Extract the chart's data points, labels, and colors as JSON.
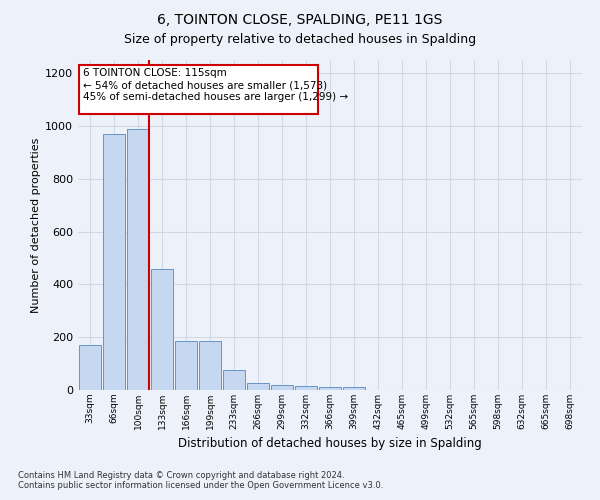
{
  "title": "6, TOINTON CLOSE, SPALDING, PE11 1GS",
  "subtitle": "Size of property relative to detached houses in Spalding",
  "xlabel": "Distribution of detached houses by size in Spalding",
  "ylabel": "Number of detached properties",
  "bar_values": [
    170,
    970,
    990,
    460,
    185,
    185,
    75,
    25,
    20,
    15,
    10,
    10,
    0,
    0,
    0,
    0,
    0,
    0,
    0,
    0
  ],
  "bar_labels": [
    "33sqm",
    "66sqm",
    "100sqm",
    "133sqm",
    "166sqm",
    "199sqm",
    "233sqm",
    "266sqm",
    "299sqm",
    "332sqm",
    "366sqm",
    "399sqm",
    "432sqm",
    "465sqm",
    "499sqm",
    "532sqm",
    "565sqm",
    "598sqm",
    "632sqm",
    "665sqm",
    "698sqm"
  ],
  "bar_color": "#c5d8f0",
  "bar_edge_color": "#6496c8",
  "red_line_x": 2.45,
  "annotation_line1": "6 TOINTON CLOSE: 115sqm",
  "annotation_line2": "← 54% of detached houses are smaller (1,573)",
  "annotation_line3": "45% of semi-detached houses are larger (1,299) →",
  "annotation_box_color": "#ffffff",
  "annotation_box_edge_color": "#cc0000",
  "ylim": [
    0,
    1250
  ],
  "yticks": [
    0,
    200,
    400,
    600,
    800,
    1000,
    1200
  ],
  "footer_text": "Contains HM Land Registry data © Crown copyright and database right 2024.\nContains public sector information licensed under the Open Government Licence v3.0.",
  "background_color": "#edf2fa",
  "grid_color": "#d0d8e8",
  "title_fontsize": 10,
  "subtitle_fontsize": 9
}
